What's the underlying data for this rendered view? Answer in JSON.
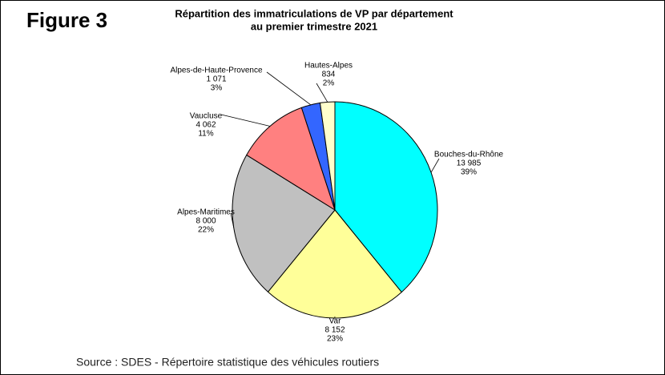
{
  "figure_label": "Figure 3",
  "source": "Source : SDES - Répertoire statistique des véhicules routiers",
  "chart_data": {
    "type": "pie",
    "title": [
      "Répartition des immatriculations de VP par département",
      "au premier trimestre 2021"
    ],
    "categories": [
      "Bouches-du-Rhône",
      "Var",
      "Alpes-Maritimes",
      "Vaucluse",
      "Alpes-de-Haute-Provence",
      "Hautes-Alpes"
    ],
    "values": [
      13985,
      8152,
      8000,
      4062,
      1071,
      834
    ],
    "value_labels": [
      "13 985",
      "8 152",
      "8 000",
      "4 062",
      "1 071",
      "834"
    ],
    "shares": [
      39,
      23,
      22,
      11,
      3,
      2
    ],
    "share_labels": [
      "39%",
      "23%",
      "22%",
      "11%",
      "3%",
      "2%"
    ],
    "colors": [
      "#00ffff",
      "#ffff99",
      "#c0c0c0",
      "#ff8080",
      "#3366ff",
      "#ffffcc"
    ]
  }
}
